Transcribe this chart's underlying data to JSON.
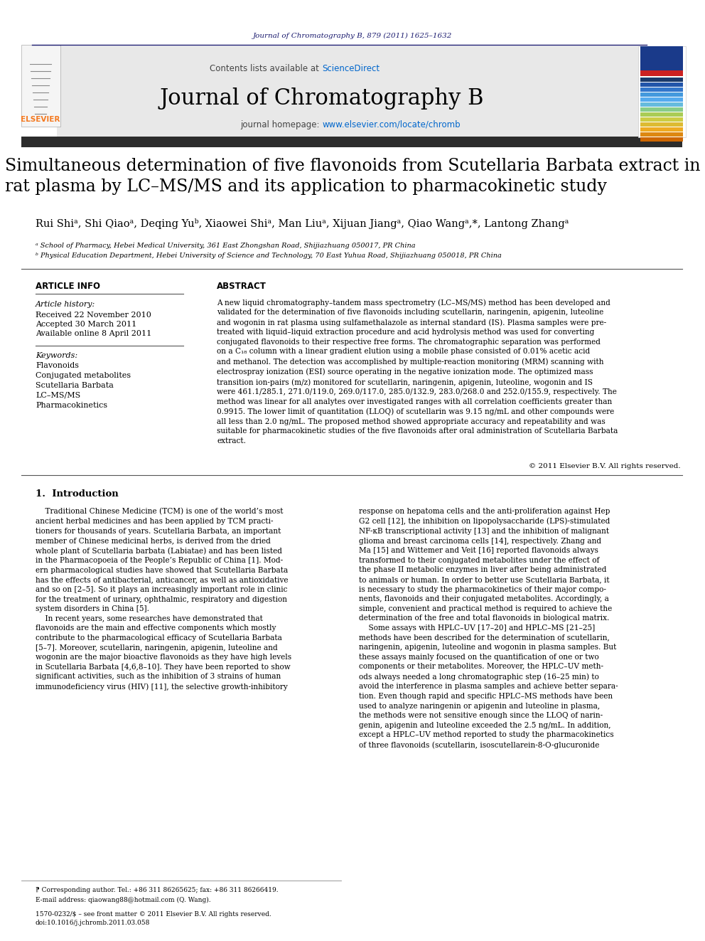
{
  "page_bg": "#ffffff",
  "top_citation": "Journal of Chromatography B, 879 (2011) 1625–1632",
  "journal_name": "Journal of Chromatography B",
  "contents_text": "Contents lists available at ",
  "sciencedirect_text": "ScienceDirect",
  "homepage_text": "journal homepage: ",
  "homepage_url": "www.elsevier.com/locate/chromb",
  "title": "Simultaneous determination of five flavonoids from Scutellaria Barbata extract in\nrat plasma by LC–MS/MS and its application to pharmacokinetic study",
  "authors": "Rui Shiᵃ, Shi Qiaoᵃ, Deqing Yuᵇ, Xiaowei Shiᵃ, Man Liuᵃ, Xijuan Jiangᵃ, Qiao Wangᵃ,*, Lantong Zhangᵃ",
  "affil_a": "ᵃ School of Pharmacy, Hebei Medical University, 361 East Zhongshan Road, Shijiazhuang 050017, PR China",
  "affil_b": "ᵇ Physical Education Department, Hebei University of Science and Technology, 70 East Yuhua Road, Shijiazhuang 050018, PR China",
  "article_info_header": "ARTICLE INFO",
  "abstract_header": "ABSTRACT",
  "article_history_label": "Article history:",
  "received": "Received 22 November 2010",
  "accepted": "Accepted 30 March 2011",
  "available": "Available online 8 April 2011",
  "keywords_label": "Keywords:",
  "keywords": [
    "Flavonoids",
    "Conjugated metabolites",
    "Scutellaria Barbata",
    "LC–MS/MS",
    "Pharmacokinetics"
  ],
  "abstract_text": "A new liquid chromatography–tandem mass spectrometry (LC–MS/MS) method has been developed and\nvalidated for the determination of five flavonoids including scutellarin, naringenin, apigenin, luteoline\nand wogonin in rat plasma using sulfamethalazole as internal standard (IS). Plasma samples were pre-\ntreated with liquid–liquid extraction procedure and acid hydrolysis method was used for converting\nconjugated flavonoids to their respective free forms. The chromatographic separation was performed\non a C₁₈ column with a linear gradient elution using a mobile phase consisted of 0.01% acetic acid\nand methanol. The detection was accomplished by multiple-reaction monitoring (MRM) scanning with\nelectrospray ionization (ESI) source operating in the negative ionization mode. The optimized mass\ntransition ion-pairs (m/z) monitored for scutellarin, naringenin, apigenin, luteoline, wogonin and IS\nwere 461.1/285.1, 271.0/119.0, 269.0/117.0, 285.0/132.9, 283.0/268.0 and 252.0/155.9, respectively. The\nmethod was linear for all analytes over investigated ranges with all correlation coefficients greater than\n0.9915. The lower limit of quantitation (LLOQ) of scutellarin was 9.15 ng/mL and other compounds were\nall less than 2.0 ng/mL. The proposed method showed appropriate accuracy and repeatability and was\nsuitable for pharmacokinetic studies of the five flavonoids after oral administration of Scutellaria Barbata\nextract.",
  "copyright": "© 2011 Elsevier B.V. All rights reserved.",
  "intro_header": "1.  Introduction",
  "intro_col1": "    Traditional Chinese Medicine (TCM) is one of the world’s most\nancient herbal medicines and has been applied by TCM practi-\ntioners for thousands of years. Scutellaria Barbata, an important\nmember of Chinese medicinal herbs, is derived from the dried\nwhole plant of Scutellaria barbata (Labiatae) and has been listed\nin the Pharmacopoeia of the People’s Republic of China [1]. Mod-\nern pharmacological studies have showed that Scutellaria Barbata\nhas the effects of antibacterial, anticancer, as well as antioxidative\nand so on [2–5]. So it plays an increasingly important role in clinic\nfor the treatment of urinary, ophthalmic, respiratory and digestion\nsystem disorders in China [5].\n    In recent years, some researches have demonstrated that\nflavonoids are the main and effective components which mostly\ncontribute to the pharmacological efficacy of Scutellaria Barbata\n[5–7]. Moreover, scutellarin, naringenin, apigenin, luteoline and\nwogonin are the major bioactive flavonoids as they have high levels\nin Scutellaria Barbata [4,6,8–10]. They have been reported to show\nsignificant activities, such as the inhibition of 3 strains of human\nimmunodeficiency virus (HIV) [11], the selective growth-inhibitory",
  "intro_col2": "response on hepatoma cells and the anti-proliferation against Hep\nG2 cell [12], the inhibition on lipopolysaccharide (LPS)-stimulated\nNF-κB transcriptional activity [13] and the inhibition of malignant\nglioma and breast carcinoma cells [14], respectively. Zhang and\nMa [15] and Wittemer and Veit [16] reported flavonoids always\ntransformed to their conjugated metabolites under the effect of\nthe phase II metabolic enzymes in liver after being administrated\nto animals or human. In order to better use Scutellaria Barbata, it\nis necessary to study the pharmacokinetics of their major compo-\nnents, flavonoids and their conjugated metabolites. Accordingly, a\nsimple, convenient and practical method is required to achieve the\ndetermination of the free and total flavonoids in biological matrix.\n    Some assays with HPLC–UV [17–20] and HPLC–MS [21–25]\nmethods have been described for the determination of scutellarin,\nnaringenin, apigenin, luteoline and wogonin in plasma samples. But\nthese assays mainly focused on the quantification of one or two\ncomponents or their metabolites. Moreover, the HPLC–UV meth-\nods always needed a long chromatographic step (16–25 min) to\navoid the interference in plasma samples and achieve better separa-\ntion. Even though rapid and specific HPLC–MS methods have been\nused to analyze naringenin or apigenin and luteoline in plasma,\nthe methods were not sensitive enough since the LLOQ of narin-\ngenin, apigenin and luteoline exceeded the 2.5 ng/mL. In addition,\nexcept a HPLC–UV method reported to study the pharmacokinetics\nof three flavonoids (scutellarin, isoscutellarein-8-O-glucuronide",
  "footer_line1": "⁋ Corresponding author. Tel.: +86 311 86265625; fax: +86 311 86266419.",
  "footer_line2": "E-mail address: qiaowang88@hotmail.com (Q. Wang).",
  "footer_line3": "1570-0232/$ – see front matter © 2011 Elsevier B.V. All rights reserved.",
  "footer_line4": "doi:10.1016/j.jchromb.2011.03.058",
  "header_bar_color": "#1a1a6e",
  "elsevier_orange": "#f47920",
  "sciencedirect_color": "#0066cc",
  "url_color": "#0066cc",
  "header_bg": "#e8e8e8",
  "dark_bar_color": "#2c2c2c",
  "cover_bar_colors": [
    "#1a3a6b",
    "#2255aa",
    "#3377cc",
    "#4499dd",
    "#55aaee",
    "#66bbdd",
    "#88cc88",
    "#aacc55",
    "#cccc44",
    "#ddbb33",
    "#eeaa22",
    "#dd8811",
    "#cc6600"
  ]
}
